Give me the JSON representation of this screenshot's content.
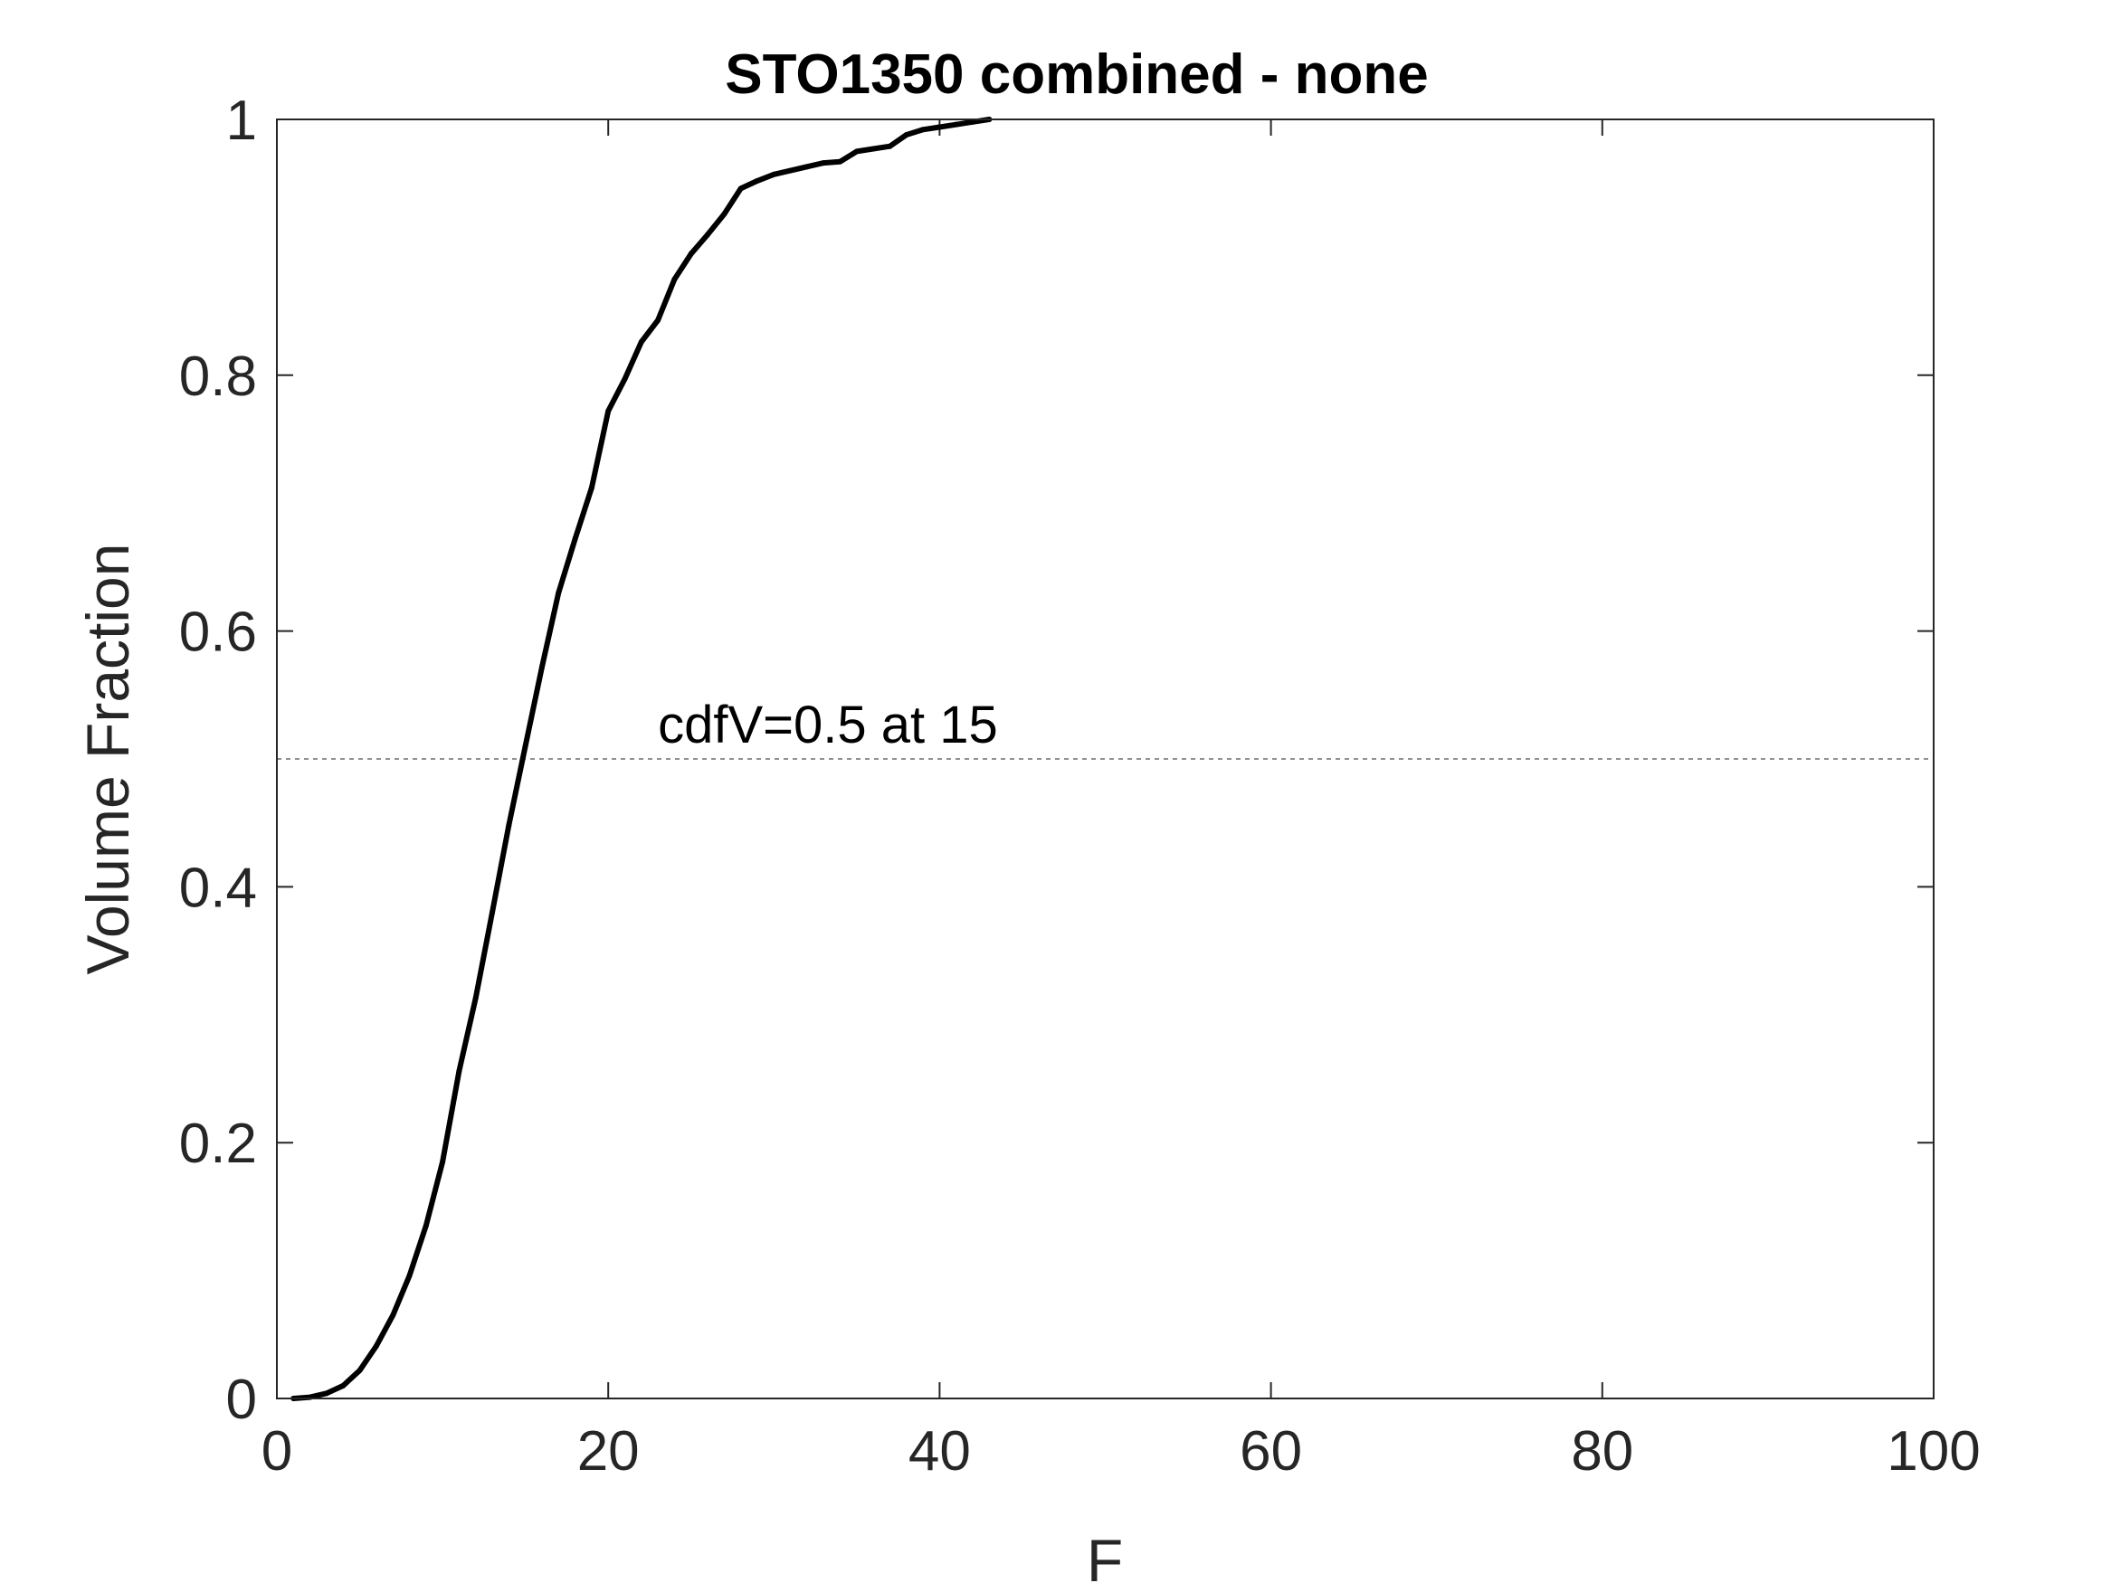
{
  "chart_data": {
    "type": "line",
    "title": "STO1350 combined - none",
    "xlabel": "F",
    "ylabel": "Volume Fraction",
    "xlim": [
      0,
      100
    ],
    "ylim": [
      0,
      1
    ],
    "x_ticks": [
      0,
      20,
      40,
      60,
      80,
      100
    ],
    "x_tick_labels": [
      "0",
      "20",
      "40",
      "60",
      "80",
      "100"
    ],
    "y_ticks": [
      0,
      0.2,
      0.4,
      0.6,
      0.8,
      1
    ],
    "y_tick_labels": [
      "0",
      "0.2",
      "0.4",
      "0.6",
      "0.8",
      "1"
    ],
    "grid": false,
    "box": true,
    "series": [
      {
        "color": "#000000",
        "x": [
          1,
          2,
          3,
          4,
          5,
          6,
          7,
          8,
          9,
          10,
          11,
          12,
          13,
          14,
          15,
          16,
          17,
          18,
          19,
          20,
          21,
          22,
          23,
          24,
          25,
          26,
          27,
          28,
          29,
          30,
          31,
          32,
          33,
          34,
          35,
          36,
          37,
          38,
          39,
          40,
          41,
          42,
          43
        ],
        "y": [
          0.0,
          0.001,
          0.004,
          0.01,
          0.022,
          0.041,
          0.065,
          0.096,
          0.135,
          0.185,
          0.256,
          0.313,
          0.38,
          0.448,
          0.51,
          0.572,
          0.63,
          0.672,
          0.712,
          0.772,
          0.797,
          0.826,
          0.843,
          0.875,
          0.895,
          0.91,
          0.926,
          0.946,
          0.952,
          0.957,
          0.96,
          0.963,
          0.966,
          0.967,
          0.975,
          0.977,
          0.979,
          0.988,
          0.992,
          0.994,
          0.996,
          0.998,
          1.0
        ]
      }
    ],
    "reference_lines": [
      {
        "orientation": "horizontal",
        "y": 0.5,
        "style": "dotted",
        "color": "#909090"
      }
    ],
    "annotations": [
      {
        "text": "cdfV=0.5 at 15",
        "x": 23,
        "y": 0.5
      }
    ]
  }
}
